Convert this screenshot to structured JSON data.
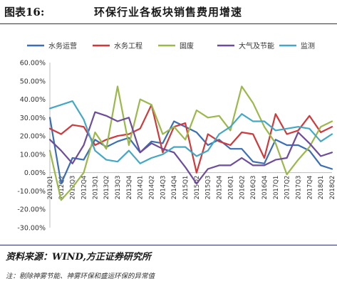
{
  "header": {
    "figure_number": "图表16:",
    "title": "环保行业各板块销售费用增速"
  },
  "source": "资料来源：WIND,方正证券研究所",
  "note": "注：剔除神雾节能、神雾环保和盛运环保的异常值",
  "chart_data": {
    "type": "line",
    "x": [
      "2012Q1",
      "2012Q2",
      "2012Q3",
      "2012Q4",
      "2013Q1",
      "2013Q2",
      "2013Q3",
      "2013Q4",
      "2014Q1",
      "2014Q2",
      "2014Q3",
      "2014Q4",
      "2015Q1",
      "2015Q2",
      "2015Q3",
      "2015Q4",
      "2016Q1",
      "2016Q2",
      "2016Q3",
      "2016Q4",
      "2017Q1",
      "2017Q2",
      "2017Q3",
      "2017Q4",
      "2018Q1",
      "2018Q2"
    ],
    "ylim": [
      -30,
      60
    ],
    "yticks": [
      "60.00%",
      "50.00%",
      "40.00%",
      "30.00%",
      "20.00%",
      "10.00%",
      "0.00%",
      "-10.00%",
      "-20.00%",
      "-30.00%"
    ],
    "ytick_values": [
      60,
      50,
      40,
      30,
      20,
      10,
      0,
      -10,
      -20,
      -30
    ],
    "legend_position": "top",
    "series": [
      {
        "name": "水务运营",
        "color": "#3b6eb5",
        "values": [
          30,
          -6,
          8,
          7,
          18,
          14,
          17,
          19,
          11,
          17,
          16,
          28,
          25,
          22,
          15,
          18,
          13,
          13,
          6,
          5,
          18,
          15,
          15,
          12,
          4,
          2
        ]
      },
      {
        "name": "水务工程",
        "color": "#d0393b",
        "values": [
          24,
          21,
          26,
          25,
          15,
          18,
          20,
          21,
          24,
          37,
          11,
          25,
          27,
          0,
          21,
          17,
          15,
          22,
          21,
          8,
          32,
          21,
          23,
          31,
          22,
          25
        ]
      },
      {
        "name": "固废",
        "color": "#9ab94a",
        "values": [
          12,
          -15,
          -8,
          0,
          22,
          13,
          47,
          15,
          40,
          37,
          21,
          25,
          18,
          34,
          30,
          31,
          23,
          47,
          38,
          25,
          16,
          -1,
          7,
          14,
          25,
          28
        ]
      },
      {
        "name": "大气及节能",
        "color": "#6e4c9c",
        "values": [
          18,
          12,
          5,
          15,
          33,
          31,
          28,
          30,
          11,
          16,
          13,
          11,
          3,
          -6,
          2,
          4,
          4,
          8,
          4,
          4,
          7,
          8,
          22,
          16,
          9,
          11
        ]
      },
      {
        "name": "监测",
        "color": "#43a8c5",
        "values": [
          35,
          37,
          39,
          29,
          12,
          7,
          6,
          12,
          5,
          8,
          10,
          14,
          14,
          9,
          12,
          21,
          25,
          32,
          28,
          28,
          23,
          24,
          25,
          24,
          17,
          21
        ]
      }
    ]
  }
}
